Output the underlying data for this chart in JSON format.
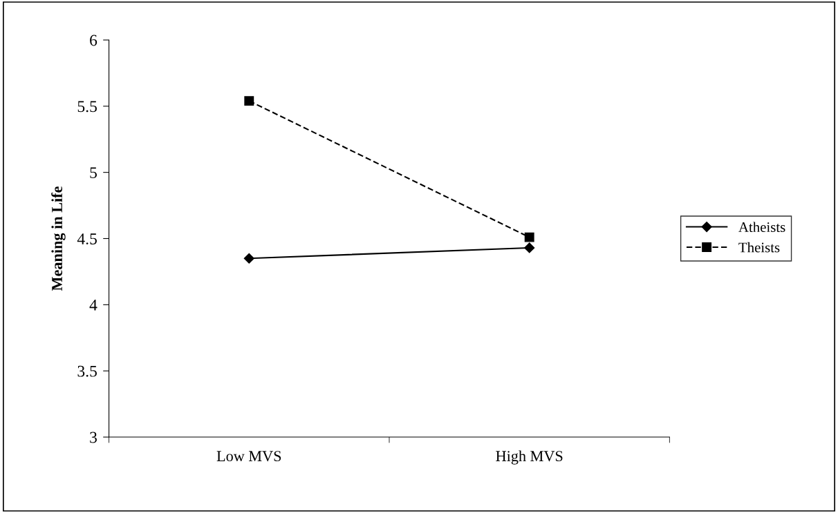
{
  "chart_data": {
    "type": "line",
    "ylabel": "Meaning in Life",
    "categories": [
      "Low MVS",
      "High MVS"
    ],
    "series": [
      {
        "name": "Atheists",
        "color": "#000000",
        "values": [
          4.35,
          4.43
        ],
        "marker": "diamond",
        "line_style": "solid"
      },
      {
        "name": "Theists",
        "color": "#000000",
        "values": [
          5.54,
          4.51
        ],
        "marker": "square",
        "line_style": "dashed"
      }
    ],
    "ylim": [
      3,
      6
    ],
    "yticks": [
      3,
      3.5,
      4,
      4.5,
      5,
      5.5,
      6
    ],
    "grid": false,
    "legend": "right"
  }
}
